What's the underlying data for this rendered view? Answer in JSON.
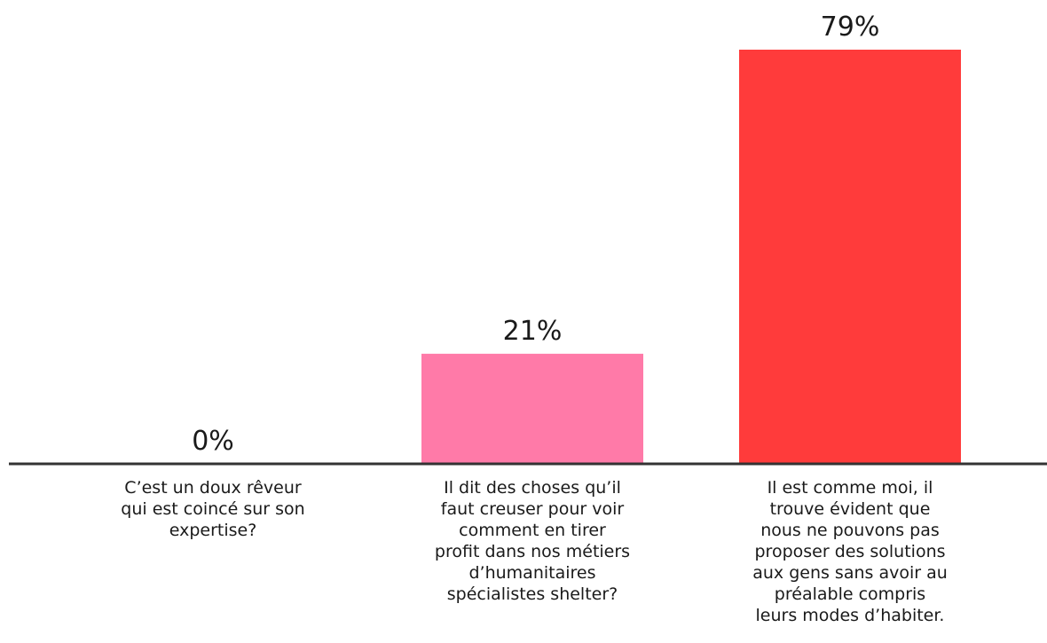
{
  "chart_data": {
    "type": "bar",
    "title": "",
    "xlabel": "",
    "ylabel": "",
    "ylim": [
      0,
      79
    ],
    "grid": false,
    "legend": "none",
    "categories": [
      [
        "C’est un doux rêveur",
        "qui est coincé sur son",
        "expertise?"
      ],
      [
        "Il dit des choses qu’il",
        "faut creuser pour voir",
        "comment en tirer",
        "profit dans nos métiers",
        "d’humanitaires",
        "spécialistes shelter?"
      ],
      [
        "Il est comme moi, il",
        "trouve évident que",
        "nous ne pouvons pas",
        "proposer des solutions",
        "aux gens sans avoir au",
        "préalable compris",
        "leurs modes d’habiter."
      ]
    ],
    "values": [
      0,
      21,
      79
    ],
    "value_labels": [
      "0%",
      "21%",
      "79%"
    ],
    "colors": [
      "#ff7aa8",
      "#ff7aa8",
      "#ff3b3b"
    ],
    "axis_color": "#333333"
  }
}
